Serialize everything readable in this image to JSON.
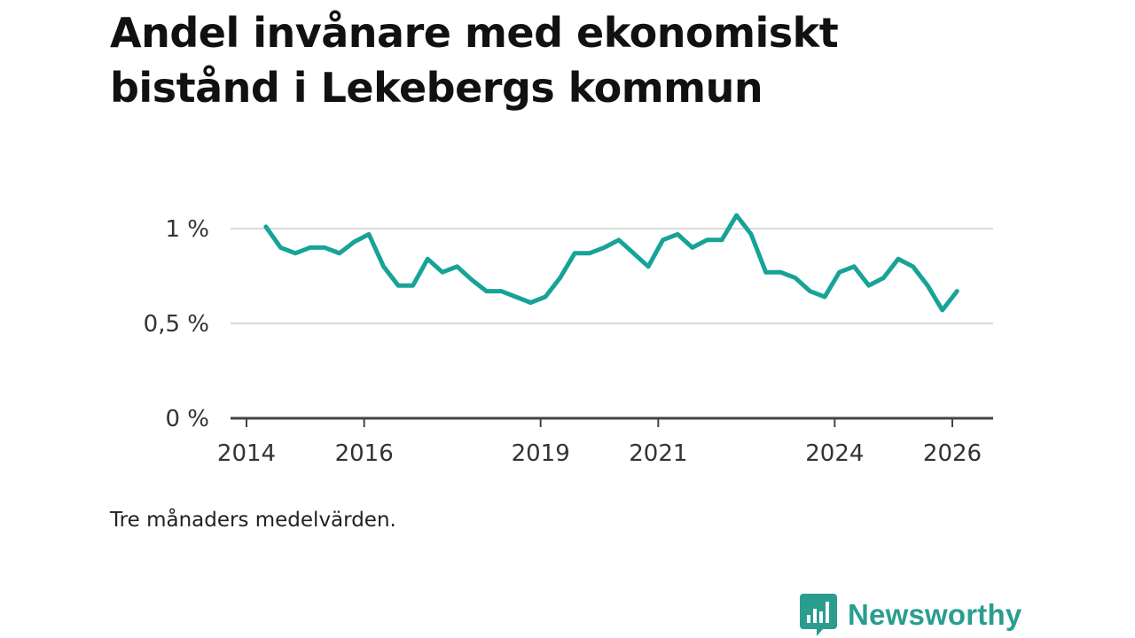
{
  "title": "Andel invånare med ekonomiskt bistånd i Lekebergs kommun",
  "note": "Tre månaders medelvärden.",
  "brand": {
    "name": "Newsworthy",
    "color": "#2a9d8f",
    "icon": "newsworthy-chart-bubble-icon"
  },
  "chart_data": {
    "type": "line",
    "title": "Andel invånare med ekonomiskt bistånd i Lekebergs kommun",
    "xlabel": "",
    "ylabel": "",
    "grid": true,
    "ylim": [
      0,
      1.2
    ],
    "yticks": [
      {
        "value": 0,
        "label": "0 %"
      },
      {
        "value": 0.5,
        "label": "0,5 %"
      },
      {
        "value": 1,
        "label": "1 %"
      }
    ],
    "xlim": [
      2014,
      2026.6
    ],
    "xticks": [
      {
        "value": 2014,
        "label": "2014"
      },
      {
        "value": 2016,
        "label": "2016"
      },
      {
        "value": 2019,
        "label": "2019"
      },
      {
        "value": 2021,
        "label": "2021"
      },
      {
        "value": 2024,
        "label": "2024"
      },
      {
        "value": 2026,
        "label": "2026"
      }
    ],
    "series": [
      {
        "name": "Andel invånare med ekonomiskt bistånd",
        "color": "#17a397",
        "x": [
          2014.33,
          2014.58,
          2014.83,
          2015.08,
          2015.33,
          2015.58,
          2015.83,
          2016.08,
          2016.33,
          2016.58,
          2016.83,
          2017.08,
          2017.33,
          2017.58,
          2017.83,
          2018.08,
          2018.33,
          2018.58,
          2018.83,
          2019.08,
          2019.33,
          2019.58,
          2019.83,
          2020.08,
          2020.33,
          2020.58,
          2020.83,
          2021.08,
          2021.33,
          2021.58,
          2021.83,
          2022.08,
          2022.33,
          2022.58,
          2022.83,
          2023.08,
          2023.33,
          2023.58,
          2023.83,
          2024.08,
          2024.33,
          2024.58,
          2024.83,
          2025.08,
          2025.33,
          2025.58,
          2025.83,
          2026.08
        ],
        "values": [
          1.01,
          0.9,
          0.87,
          0.9,
          0.9,
          0.87,
          0.93,
          0.97,
          0.8,
          0.7,
          0.7,
          0.84,
          0.77,
          0.8,
          0.73,
          0.67,
          0.67,
          0.64,
          0.61,
          0.64,
          0.74,
          0.87,
          0.87,
          0.9,
          0.94,
          0.87,
          0.8,
          0.94,
          0.97,
          0.9,
          0.94,
          0.94,
          1.07,
          0.97,
          0.77,
          0.77,
          0.74,
          0.67,
          0.64,
          0.77,
          0.8,
          0.7,
          0.74,
          0.84,
          0.8,
          0.7,
          0.57,
          0.67
        ]
      }
    ]
  }
}
